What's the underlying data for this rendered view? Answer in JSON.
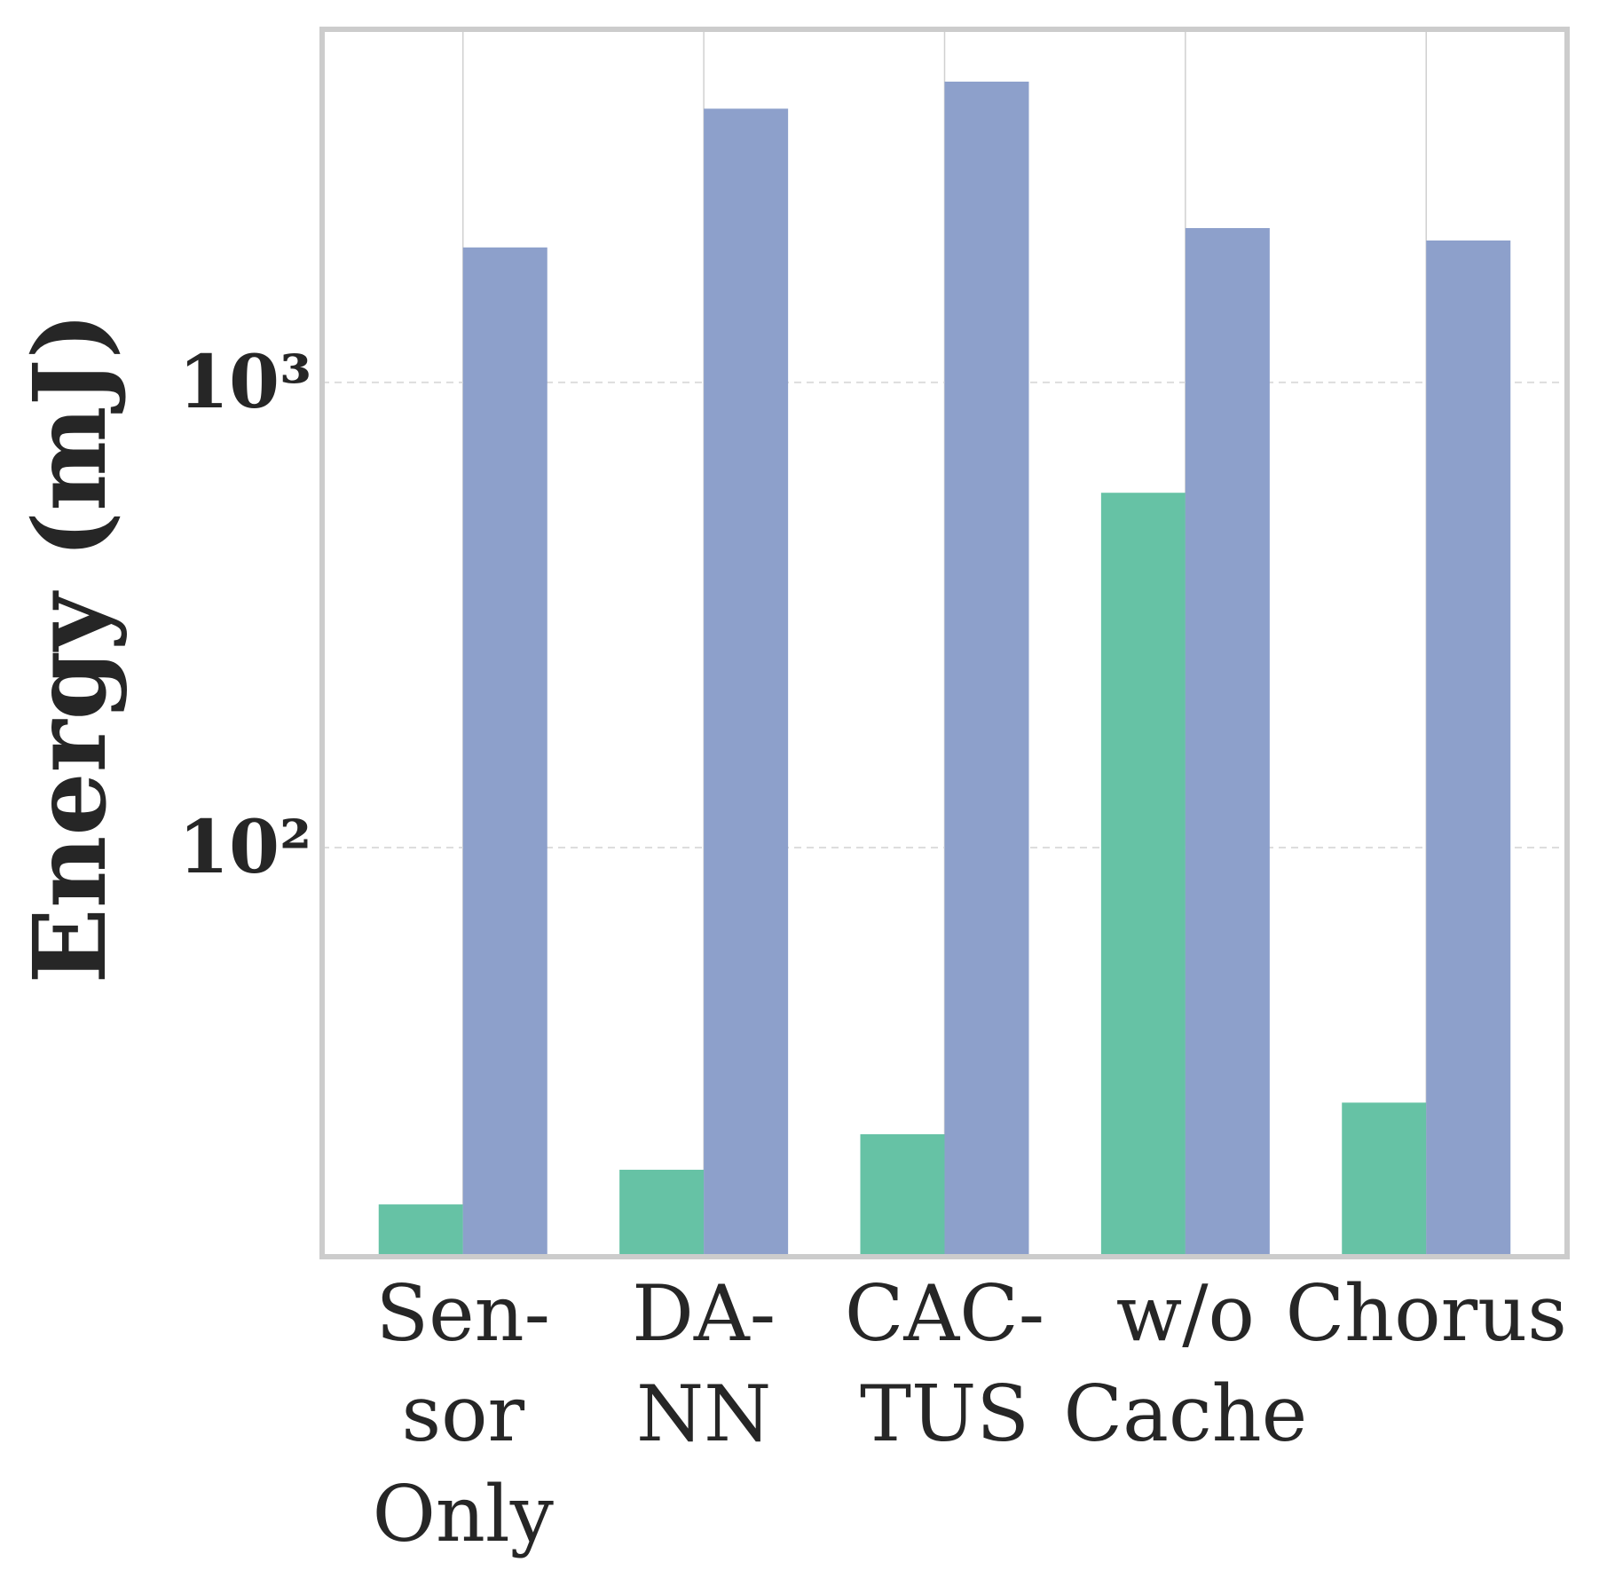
{
  "chart_data": {
    "type": "bar",
    "ylabel": "Energy (mJ)",
    "log_scale": true,
    "grid": true,
    "categories": [
      "Sen-\nsor\nOnly",
      "DA-\nNN",
      "CAC-\nTUS",
      "w/o\nCache",
      "Chorus"
    ],
    "series": [
      {
        "color": "#66c2a5",
        "values": [
          17.1,
          20.3,
          24.2,
          579,
          28.3
        ]
      },
      {
        "color": "#8da0cb",
        "values": [
          1950,
          3875,
          4430,
          2146,
          2018
        ]
      }
    ],
    "ylim": [
      13.2,
      5740
    ],
    "yticks": [
      {
        "value": 100,
        "label": "10²"
      },
      {
        "value": 1000,
        "label": "10³"
      }
    ]
  }
}
